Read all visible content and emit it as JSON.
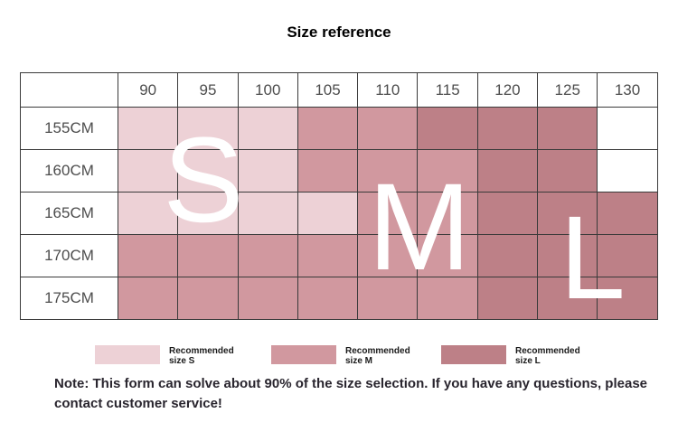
{
  "title": "Size reference",
  "chart_data": {
    "type": "heatmap",
    "title": "Size reference",
    "x_labels": [
      "90",
      "95",
      "100",
      "105",
      "110",
      "115",
      "120",
      "125",
      "130"
    ],
    "y_labels": [
      "155CM",
      "160CM",
      "165CM",
      "170CM",
      "175CM"
    ],
    "cell_sizes": [
      [
        "S",
        "S",
        "S",
        "M",
        "M",
        "L",
        "L",
        "L",
        ""
      ],
      [
        "S",
        "S",
        "S",
        "M",
        "M",
        "M",
        "L",
        "L",
        ""
      ],
      [
        "S",
        "S",
        "S",
        "S",
        "M",
        "M",
        "L",
        "L",
        "L"
      ],
      [
        "M",
        "M",
        "M",
        "M",
        "M",
        "M",
        "L",
        "L",
        "L"
      ],
      [
        "M",
        "M",
        "M",
        "M",
        "M",
        "M",
        "L",
        "L",
        "L"
      ]
    ],
    "annotations": [
      "S",
      "M",
      "L"
    ],
    "legend_position": "bottom"
  },
  "legend": [
    {
      "size": "s",
      "line1": "Recommended",
      "line2": "size S"
    },
    {
      "size": "m",
      "line1": "Recommended",
      "line2": "size M"
    },
    {
      "size": "l",
      "line1": "Recommended",
      "line2": "size L"
    }
  ],
  "note": "Note: This form can solve about 90% of the size selection. If you have any questions, please contact customer service!",
  "colors": {
    "size_s": "#edd1d6",
    "size_m": "#d1989f",
    "size_l": "#bd8087",
    "grid_line": "#3a3a3a",
    "table_text": "#4d4d4d",
    "letter_text": "#ffffff"
  }
}
